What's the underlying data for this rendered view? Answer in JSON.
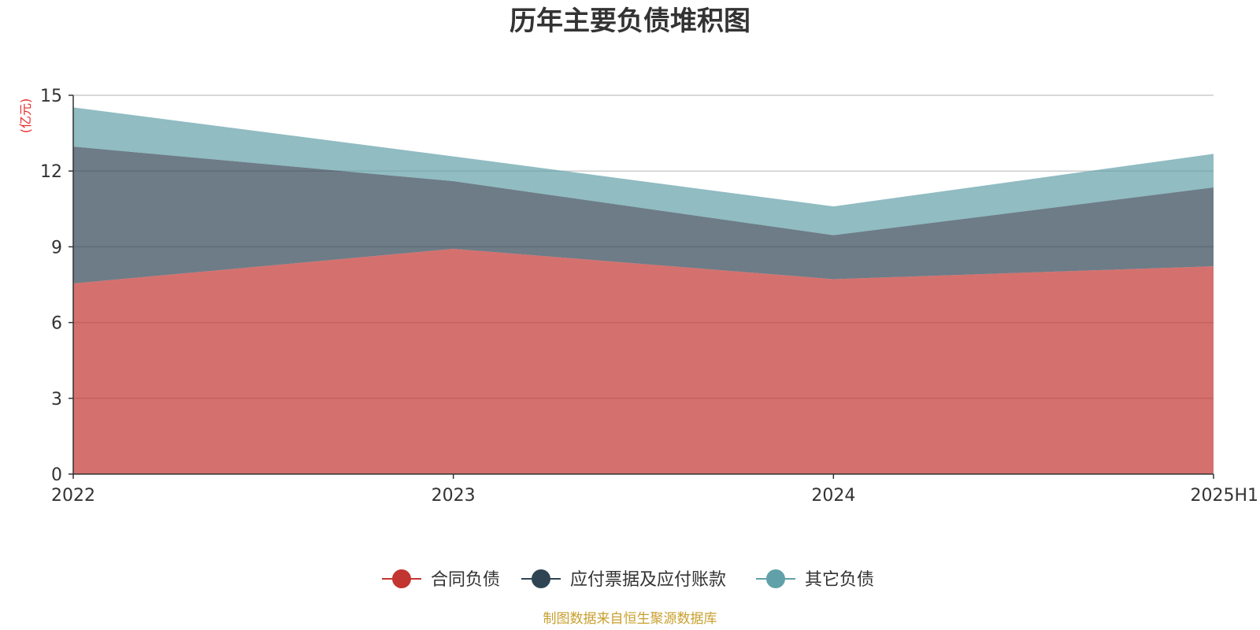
{
  "chart_data": {
    "type": "area",
    "stacked": true,
    "title": "历年主要负债堆积图",
    "y_unit_label": "(亿元)",
    "categories": [
      "2022",
      "2023",
      "2024",
      "2025H1"
    ],
    "ylim": [
      0,
      15
    ],
    "yticks": [
      0,
      3,
      6,
      9,
      12,
      15
    ],
    "grid": true,
    "legend_position": "bottom",
    "series": [
      {
        "name": "合同负债",
        "color": "#c23531",
        "values": [
          7.55,
          8.92,
          7.72,
          8.23
        ]
      },
      {
        "name": "应付票据及应付账款",
        "color": "#2f4554",
        "values": [
          5.42,
          2.68,
          1.74,
          3.12
        ]
      },
      {
        "name": "其它负债",
        "color": "#61a0a8",
        "values": [
          1.55,
          0.98,
          1.14,
          1.33
        ]
      }
    ],
    "source_text": "制图数据来自恒生聚源数据库",
    "colors": {
      "unit_label": "#e82a2a",
      "source_text": "#c8a030",
      "axis": "#333333",
      "grid": "#cccccc"
    }
  }
}
